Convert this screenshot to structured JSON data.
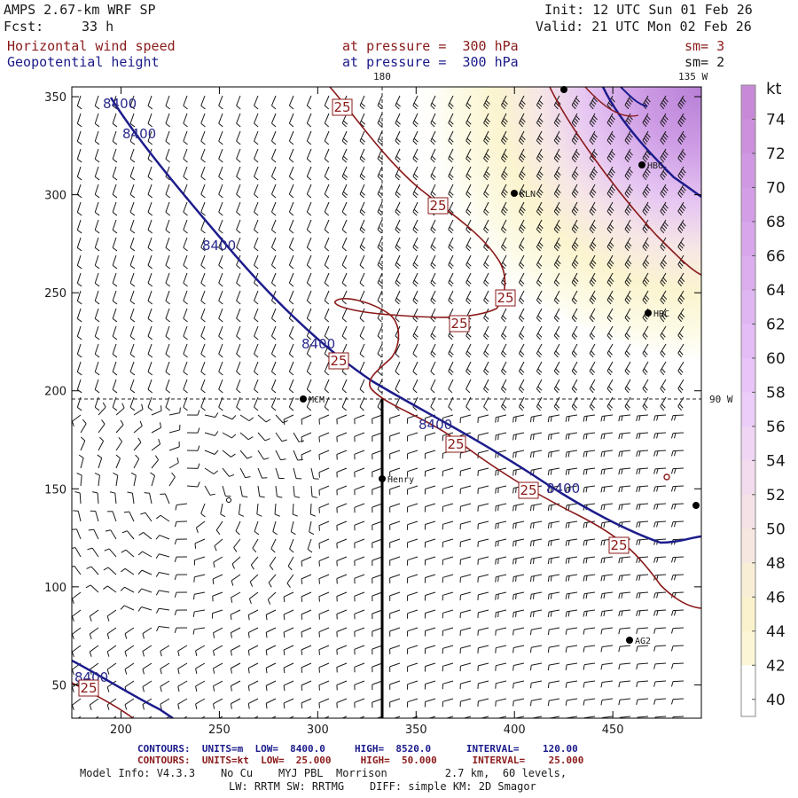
{
  "header": {
    "model": "AMPS 2.67-km WRF SP",
    "fcst_label": "Fcst:",
    "fcst_value": "33 h",
    "init": "Init: 12 UTC Sun 01 Feb 26",
    "valid": "Valid: 21 UTC Mon 02 Feb 26",
    "field1": "Horizontal wind speed",
    "field2": "Geopotential height",
    "level1": "at pressure =  300 hPa",
    "level2": "at pressure =  300 hPa",
    "sm1": "sm= 3",
    "sm2": "sm= 2",
    "top_lon_180": "180",
    "top_lon_135": "135 W",
    "right_lon_90": "90 W"
  },
  "axes": {
    "x_ticks": [
      "200",
      "250",
      "300",
      "350",
      "400",
      "450"
    ],
    "y_ticks": [
      "350",
      "300",
      "250",
      "200",
      "150",
      "100",
      "50"
    ]
  },
  "colorbar": {
    "unit": "kt",
    "labels": [
      "74",
      "72",
      "70",
      "68",
      "66",
      "64",
      "62",
      "60",
      "58",
      "56",
      "54",
      "52",
      "50",
      "48",
      "46",
      "44",
      "42",
      "40"
    ],
    "colors": [
      "#c88ad8",
      "#cc90dc",
      "#d098e2",
      "#d49ee6",
      "#d8a6ea",
      "#dcaeee",
      "#e0b6f2",
      "#e4bcf6",
      "#e8c4f8",
      "#ecccf8",
      "#f0d6f4",
      "#f2dcee",
      "#f4e2e6",
      "#f6e8e0",
      "#f8eed6",
      "#faf2cc",
      "#fcf6d6",
      "#ffffff"
    ]
  },
  "stations": [
    {
      "id": "stn-kln",
      "label": "KLN"
    },
    {
      "id": "stn-hbg",
      "label": "HBG"
    },
    {
      "id": "stn-hrc",
      "label": "HRC"
    },
    {
      "id": "stn-mcm",
      "label": "MCM"
    },
    {
      "id": "stn-henry",
      "label": "Henry"
    },
    {
      "id": "stn-ag2",
      "label": "AG2"
    }
  ],
  "contour_labels": {
    "height": "8400",
    "speed": "25"
  },
  "footer": {
    "c1": "CONTOURS:  UNITS=m  LOW=  8400.0     HIGH=  8520.0      INTERVAL=    120.00",
    "c2": "CONTOURS:  UNITS=kt  LOW=  25.000     HIGH=  50.000      INTERVAL=    25.000",
    "model_info": "Model Info: V4.3.3    No Cu    MYJ PBL  Morrison         2.7 km,  60 levels,",
    "physics": "LW: RRTM SW: RRTMG    DIFF: simple KM: 2D Smagor"
  }
}
